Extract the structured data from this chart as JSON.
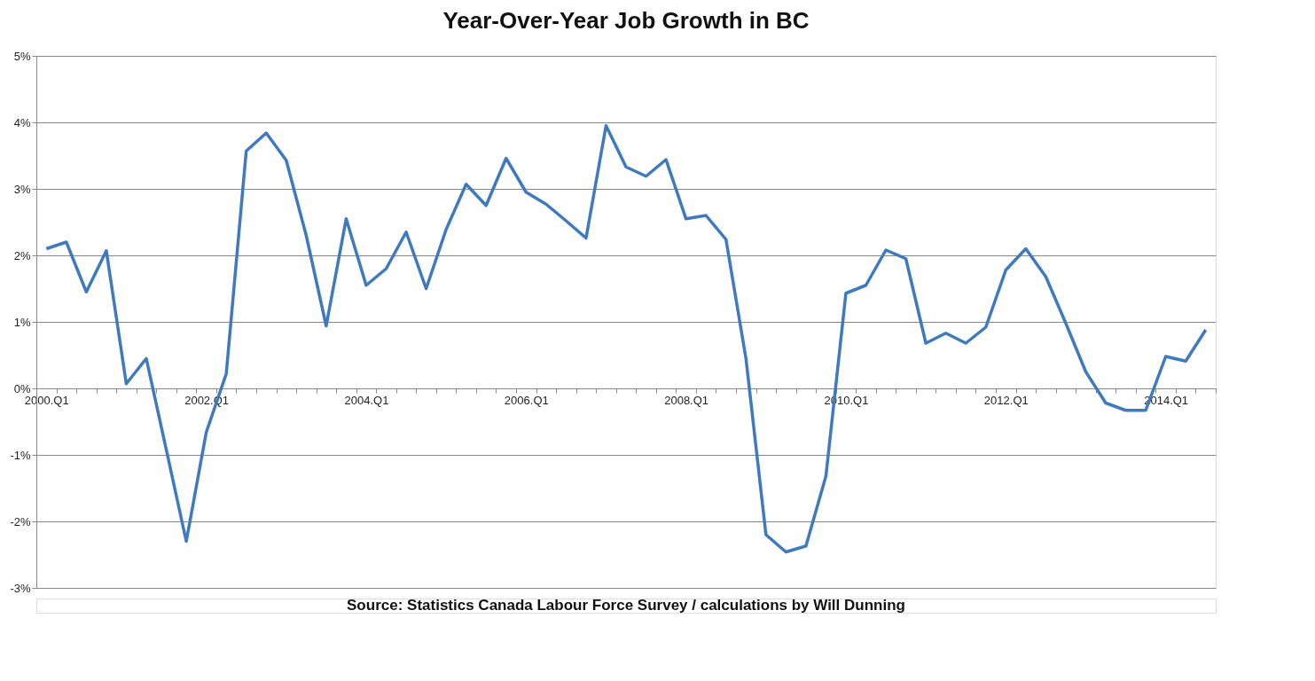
{
  "chart_data": {
    "type": "line",
    "title": "Year-Over-Year Job Growth in BC",
    "categories": [
      "2000.Q1",
      null,
      null,
      null,
      null,
      null,
      null,
      null,
      "2002.Q1",
      null,
      null,
      null,
      null,
      null,
      null,
      null,
      "2004.Q1",
      null,
      null,
      null,
      null,
      null,
      null,
      null,
      "2006.Q1",
      null,
      null,
      null,
      null,
      null,
      null,
      null,
      "2008.Q1",
      null,
      null,
      null,
      null,
      null,
      null,
      null,
      "2010.Q1",
      null,
      null,
      null,
      null,
      null,
      null,
      null,
      "2012.Q1",
      null,
      null,
      null,
      null,
      null,
      null,
      null,
      "2014.Q1",
      null,
      null
    ],
    "series": [
      {
        "color": "#3f7abf",
        "values": [
          2.1,
          2.2,
          1.45,
          2.07,
          0.07,
          0.45,
          -0.92,
          -2.3,
          -0.66,
          0.22,
          3.57,
          3.84,
          3.43,
          2.3,
          0.94,
          2.55,
          1.55,
          1.8,
          2.35,
          1.5,
          2.39,
          3.07,
          2.75,
          3.46,
          2.95,
          2.77,
          2.52,
          2.26,
          3.95,
          3.33,
          3.19,
          3.44,
          2.55,
          2.6,
          2.24,
          0.45,
          -2.2,
          -2.46,
          -2.37,
          -1.32,
          1.43,
          1.55,
          2.08,
          1.95,
          0.68,
          0.83,
          0.68,
          0.92,
          1.78,
          2.1,
          1.68,
          0.98,
          0.25,
          -0.22,
          -0.33,
          -0.33,
          0.48,
          0.41,
          0.88
        ]
      }
    ],
    "ylim": [
      -3,
      5
    ],
    "yticks": [
      {
        "value": -3,
        "label": "-3%"
      },
      {
        "value": -2,
        "label": "-2%"
      },
      {
        "value": -1,
        "label": "-1%"
      },
      {
        "value": 0,
        "label": "0%"
      },
      {
        "value": 1,
        "label": "1%"
      },
      {
        "value": 2,
        "label": "2%"
      },
      {
        "value": 3,
        "label": "3%"
      },
      {
        "value": 4,
        "label": "4%"
      },
      {
        "value": 5,
        "label": "5%"
      }
    ],
    "grid": "y",
    "line_style": "solid",
    "marker": "none",
    "annotations": [
      "Source: Statistics Canada Labour Force Survey / calculations by Will Dunning"
    ]
  }
}
